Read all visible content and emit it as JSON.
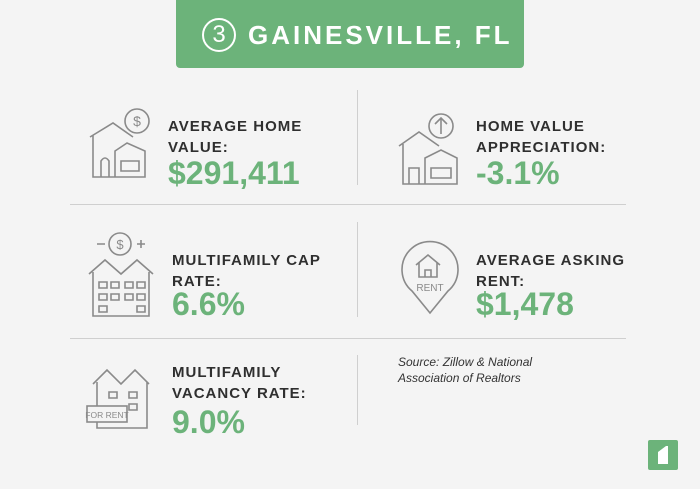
{
  "header": {
    "number": "3",
    "title": "GAINESVILLE, FL"
  },
  "stats": [
    {
      "label": "AVERAGE HOME VALUE:",
      "value": "$291,411"
    },
    {
      "label": "HOME VALUE APPRECIATION:",
      "value": "-3.1%"
    },
    {
      "label": "MULTIFAMILY CAP RATE:",
      "value": "6.6%"
    },
    {
      "label": "AVERAGE ASKING RENT:",
      "value": "$1,478"
    },
    {
      "label": "MULTIFAMILY VACANCY RATE:",
      "value": "9.0%"
    }
  ],
  "icons": {
    "rent_pin": "RENT",
    "for_rent_sign": "FOR RENT"
  },
  "source": "Source: Zillow & National Association of Realtors"
}
